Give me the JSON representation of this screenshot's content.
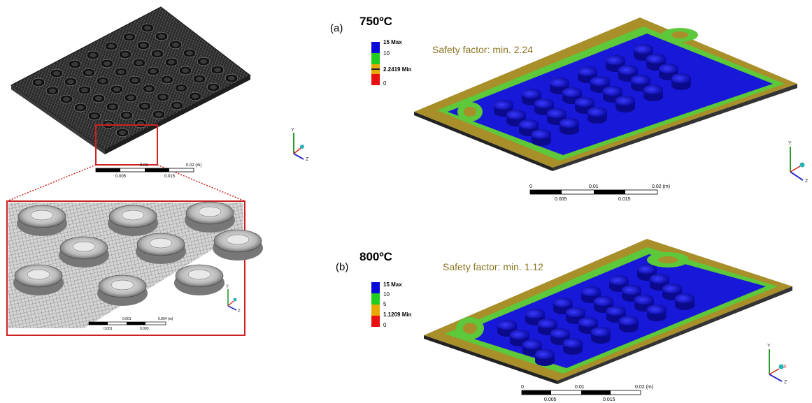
{
  "panel_a": {
    "label": "(a)",
    "temperature": "750ºC",
    "annotation": "Safety factor: min. 2.24",
    "legend": {
      "entries": [
        "15 Max",
        "10",
        "2.2419 Min",
        "0"
      ],
      "colors": [
        "#0a0ad8",
        "#1fcc1f",
        "#e8a800",
        "#e81010"
      ]
    },
    "scale": {
      "top": [
        "0",
        "0.01",
        "0.02 (m)"
      ],
      "bottom": [
        "0.005",
        "0.015"
      ]
    }
  },
  "panel_b": {
    "label": "(b)",
    "temperature": "800ºC",
    "annotation": "Safety factor: min. 1.12",
    "legend": {
      "entries": [
        "15 Max",
        "10",
        "5",
        "1.1209 Min",
        "0"
      ],
      "colors": [
        "#0a0ad8",
        "#1fcc1f",
        "#e8a800",
        "#e81010"
      ]
    },
    "scale": {
      "top": [
        "0",
        "0.01",
        "0.02 (m)"
      ],
      "bottom": [
        "0.005",
        "0.015"
      ]
    }
  },
  "mesh_overview": {
    "scale": {
      "top": [
        "0.01",
        "0.02 (m)"
      ],
      "bottom": [
        "0.005",
        "0.015"
      ]
    }
  },
  "mesh_zoom": {
    "scale": {
      "top": [
        "0.001",
        "0.004 (m)"
      ],
      "bottom": [
        "0.001",
        "0.003"
      ]
    }
  },
  "triad": {
    "y": "Y",
    "z": "Z",
    "x": "X"
  },
  "colors": {
    "mesh_dark": "#222222",
    "plate_olive": "#a88f2a",
    "plate_green": "#5cc83a",
    "plate_blue": "#1818d8",
    "zoom_box": "#cc2222"
  }
}
